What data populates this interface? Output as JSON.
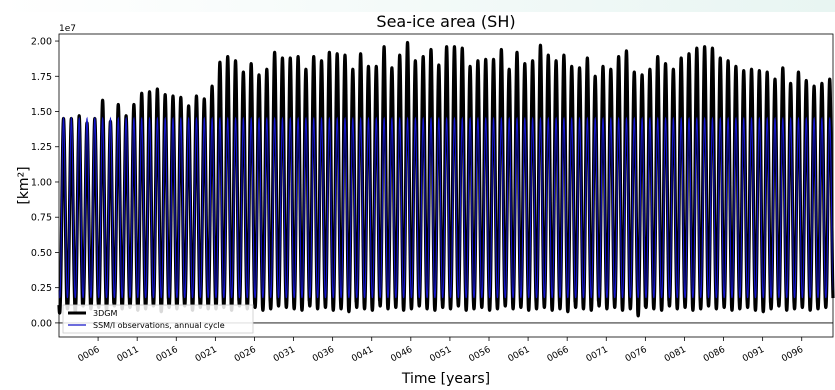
{
  "chart_data": {
    "type": "line",
    "title": "Sea-ice area (SH)",
    "xlabel": "Time [years]",
    "ylabel": "[km²]",
    "y_multiplier": "1e7",
    "xlim": [
      1,
      100
    ],
    "ylim": [
      -0.1,
      2.05
    ],
    "x_ticks": [
      "0006",
      "0011",
      "0016",
      "0021",
      "0026",
      "0031",
      "0036",
      "0041",
      "0046",
      "0051",
      "0056",
      "0061",
      "0066",
      "0071",
      "0076",
      "0081",
      "0086",
      "0091",
      "0096"
    ],
    "y_ticks": [
      "0.00",
      "0.25",
      "0.50",
      "0.75",
      "1.00",
      "1.25",
      "1.50",
      "1.75",
      "2.00"
    ],
    "legend_position": "lower-left",
    "series": [
      {
        "name": "3DGM",
        "color": "#000000",
        "annual_max": [
          1.45,
          1.45,
          1.47,
          1.42,
          1.45,
          1.58,
          1.43,
          1.55,
          1.47,
          1.55,
          1.63,
          1.64,
          1.66,
          1.62,
          1.61,
          1.6,
          1.54,
          1.61,
          1.59,
          1.68,
          1.85,
          1.89,
          1.86,
          1.78,
          1.84,
          1.76,
          1.8,
          1.92,
          1.88,
          1.88,
          1.89,
          1.8,
          1.89,
          1.86,
          1.92,
          1.91,
          1.9,
          1.8,
          1.91,
          1.82,
          1.82,
          1.96,
          1.81,
          1.9,
          1.99,
          1.86,
          1.89,
          1.94,
          1.83,
          1.96,
          1.96,
          1.95,
          1.82,
          1.86,
          1.87,
          1.87,
          1.94,
          1.8,
          1.92,
          1.84,
          1.86,
          1.97,
          1.9,
          1.86,
          1.9,
          1.82,
          1.81,
          1.88,
          1.75,
          1.82,
          1.8,
          1.89,
          1.93,
          1.78,
          1.76,
          1.8,
          1.89,
          1.84,
          1.8,
          1.88,
          1.91,
          1.95,
          1.96,
          1.95,
          1.88,
          1.86,
          1.82,
          1.79,
          1.8,
          1.79,
          1.78,
          1.73,
          1.81,
          1.7,
          1.78,
          1.72,
          1.68,
          1.7,
          1.73
        ],
        "annual_min": [
          0.07,
          0.1,
          0.08,
          0.12,
          0.1,
          0.11,
          0.09,
          0.12,
          0.1,
          0.11,
          0.09,
          0.1,
          0.12,
          0.08,
          0.11,
          0.1,
          0.12,
          0.09,
          0.11,
          0.1,
          0.1,
          0.11,
          0.09,
          0.12,
          0.1,
          0.11,
          0.09,
          0.1,
          0.12,
          0.11,
          0.1,
          0.09,
          0.12,
          0.1,
          0.11,
          0.09,
          0.1,
          0.08,
          0.11,
          0.1,
          0.09,
          0.12,
          0.1,
          0.11,
          0.09,
          0.1,
          0.12,
          0.1,
          0.09,
          0.11,
          0.1,
          0.12,
          0.09,
          0.1,
          0.11,
          0.09,
          0.1,
          0.12,
          0.1,
          0.11,
          0.09,
          0.1,
          0.11,
          0.09,
          0.1,
          0.08,
          0.11,
          0.1,
          0.09,
          0.12,
          0.1,
          0.11,
          0.09,
          0.1,
          0.05,
          0.11,
          0.1,
          0.09,
          0.12,
          0.1,
          0.11,
          0.09,
          0.1,
          0.12,
          0.1,
          0.11,
          0.09,
          0.1,
          0.11,
          0.09,
          0.08,
          0.1,
          0.12,
          0.09,
          0.1,
          0.11,
          0.09,
          0.1,
          0.11
        ]
      },
      {
        "name": "SSM/I observations, annual cycle",
        "color": "#1414c8",
        "annual_max": 1.45,
        "annual_min": 0.18
      }
    ]
  }
}
